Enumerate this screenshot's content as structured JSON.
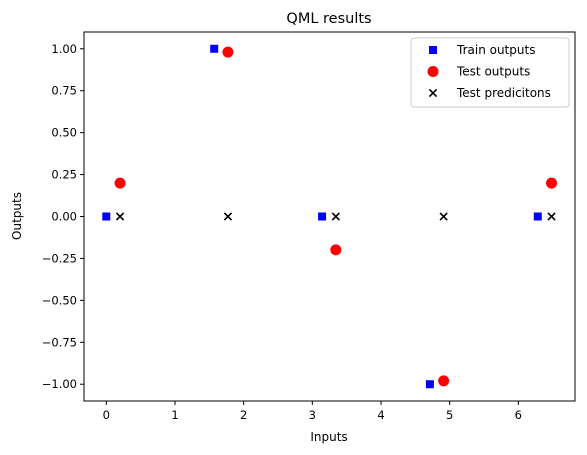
{
  "chart_data": {
    "type": "scatter",
    "title": "QML results",
    "xlabel": "Inputs",
    "ylabel": "Outputs",
    "xlim": [
      -0.325,
      6.825
    ],
    "ylim": [
      -1.1,
      1.1
    ],
    "xticks": [
      0,
      1,
      2,
      3,
      4,
      5,
      6
    ],
    "xtick_labels": [
      "0",
      "1",
      "2",
      "3",
      "4",
      "5",
      "6"
    ],
    "yticks": [
      1.0,
      0.75,
      0.5,
      0.25,
      0.0,
      -0.25,
      -0.5,
      -0.75,
      -1.0
    ],
    "ytick_labels": [
      "1.00",
      "0.75",
      "0.50",
      "0.25",
      "0.00",
      "−0.25",
      "−0.50",
      "−0.75",
      "−1.00"
    ],
    "grid": false,
    "legend_position": "upper-right",
    "series": [
      {
        "name": "Train outputs",
        "marker": "square",
        "color": "#0000ff",
        "x": [
          0.0,
          1.571,
          3.142,
          4.712,
          6.283
        ],
        "y": [
          0.0,
          1.0,
          0.0,
          -1.0,
          0.0
        ]
      },
      {
        "name": "Test outputs",
        "marker": "circle",
        "color": "#ff0000",
        "x": [
          0.2,
          1.771,
          3.342,
          4.912,
          6.483
        ],
        "y": [
          0.199,
          0.98,
          -0.199,
          -0.98,
          0.199
        ]
      },
      {
        "name": "Test predicitons",
        "marker": "x",
        "color": "#000000",
        "x": [
          0.2,
          1.771,
          3.342,
          4.912,
          6.483
        ],
        "y": [
          0.0,
          0.0,
          0.0,
          0.0,
          0.0
        ]
      }
    ]
  }
}
